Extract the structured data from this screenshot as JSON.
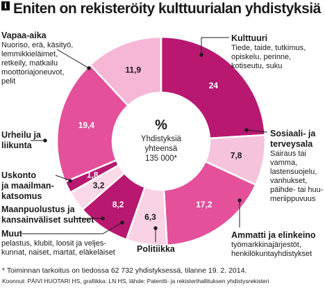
{
  "header": {
    "info_glyph": "i",
    "title": "Eniten on rekisteröity kulttuurialan yhdistyksiä"
  },
  "center": {
    "symbol": "%",
    "line1": "Yhdistyksiä",
    "line2": "yhteensä",
    "line3": "135 000*"
  },
  "chart_data": {
    "type": "pie",
    "categories": [
      "Kulttuuri",
      "Sosiaali- ja terveysala",
      "Ammatti ja elinkeino",
      "Politiikka",
      "Muut",
      "Maanpuolustus ja kansainväliset suhteet",
      "Uskonto ja maailmankatsomus",
      "Urheilu ja liikunta",
      "Vapaa-aika"
    ],
    "values": [
      24,
      7.8,
      17.2,
      6.3,
      8.2,
      3.2,
      1.8,
      19.4,
      11.9
    ],
    "value_labels": [
      "24",
      "7,8",
      "17,2",
      "6,3",
      "8,2",
      "3,2",
      "1,8",
      "19,4",
      "11,9"
    ],
    "colors": [
      "#b81870",
      "#f6c3dd",
      "#e4509a",
      "#f9d2e5",
      "#b81870",
      "#fbd9e9",
      "#b81870",
      "#e4509a",
      "#f6b6d6"
    ],
    "label_colors": [
      "#ffffff",
      "#1a1a1a",
      "#ffffff",
      "#1a1a1a",
      "#ffffff",
      "#1a1a1a",
      "#ffffff",
      "#ffffff",
      "#1a1a1a"
    ],
    "donut": true
  },
  "labels": {
    "vapaa": {
      "heading": "Vapaa-aika",
      "detail": "Nuoriso, erä, käsityö,\nlemmikkieläimet,\nretkeily, matkailu\nmoottoriajoneuvot,\npelit"
    },
    "kulttuuri": {
      "heading": "Kulttuuri",
      "detail": "Tiede, taide, tutkimus,\nopiskelu, perinne,\nkotiseutu, suku"
    },
    "urheilu": {
      "heading": "Urheilu ja\nliikunta"
    },
    "sosiaali": {
      "heading": "Sosiaali- ja\nterveysala",
      "detail": "Sairaus tai\nvamma,\nlastensuojelu,\nvanhukset,\npäihde- tai huu-\nmeriippuvuus"
    },
    "uskonto": {
      "heading": "Uskonto\nja maailman-\nkatsomus"
    },
    "maanpuolustus": {
      "heading": "Maanpuolustus ja\nkansainväliset suhteet"
    },
    "muut": {
      "heading": "Muut",
      "detail": "pelastus, klubit, loosit ja veljes-\nkunnat, naiset, martat, eläkeläiset"
    },
    "politiikka": {
      "heading": "Politiikka"
    },
    "ammatti": {
      "heading": "Ammatti ja elinkeino",
      "detail": "työmarkkinajärjestöt,\nhenkilökuntayhdistykset"
    }
  },
  "footnote": "* Toiminnan tarkoitus on tiedossa 62 732 yhdistyksessä, tilanne 19. 2. 2014.",
  "sources": "Koonnut: PÄIVI HUOTARI HS, grafiikka: LN HS, lähde: Patentti- ja rekisterihallituksen yhdistysrekisteri"
}
